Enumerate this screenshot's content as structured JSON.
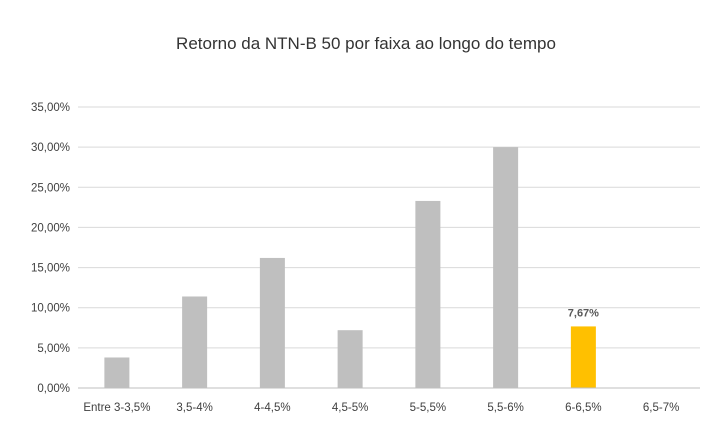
{
  "chart_data": {
    "type": "bar",
    "title": "Retorno da NTN-B 50 por faixa ao longo do tempo",
    "xlabel": "",
    "ylabel": "",
    "categories": [
      "Entre 3-3,5%",
      "3,5-4%",
      "4-4,5%",
      "4,5-5%",
      "5-5,5%",
      "5,5-6%",
      "6-6,5%",
      "6,5-7%"
    ],
    "values": [
      3.8,
      11.4,
      16.2,
      7.2,
      23.3,
      30.0,
      7.67,
      0
    ],
    "ylim": [
      0,
      35
    ],
    "yticks": [
      0,
      5,
      10,
      15,
      20,
      25,
      30,
      35
    ],
    "ytick_labels": [
      "0,00%",
      "5,00%",
      "10,00%",
      "15,00%",
      "20,00%",
      "25,00%",
      "30,00%",
      "35,00%"
    ],
    "grid": true,
    "legend": "none",
    "colors": {
      "bar": "#bfbfbf",
      "highlight": "#ffc000",
      "grid": "#d9d9d9",
      "axis": "#bfbfbf"
    },
    "highlight_index": 6,
    "data_labels": [
      {
        "index": 6,
        "text": "7,67%"
      }
    ]
  }
}
